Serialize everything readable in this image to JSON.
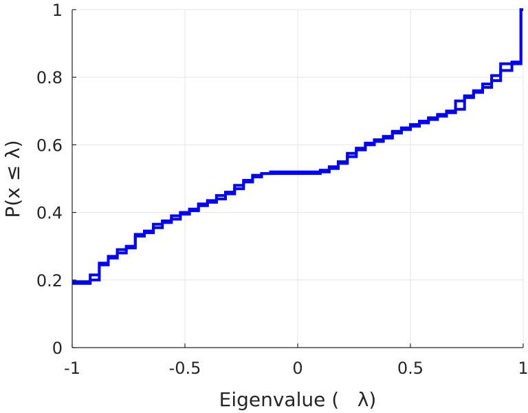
{
  "chart_data": {
    "type": "line",
    "style": "stairs",
    "title": "",
    "xlabel": "Eigenvalue (   λ)",
    "ylabel": "P(x ≤ λ)",
    "xlim": [
      -1,
      1
    ],
    "ylim": [
      0,
      1
    ],
    "grid": true,
    "legend": "none",
    "xticks": [
      -1,
      -0.5,
      0,
      0.5,
      1
    ],
    "xtick_labels": [
      "-1",
      "-0.5",
      "0",
      "0.5",
      "1"
    ],
    "yticks": [
      0,
      0.2,
      0.4,
      0.6,
      0.8,
      1
    ],
    "ytick_labels": [
      "0",
      "0.2",
      "0.4",
      "0.6",
      "0.8",
      "1"
    ],
    "colors": {
      "series": "#0000ff",
      "grid": "#e6e6e6",
      "axis": "#262626"
    },
    "series": [
      {
        "x": [
          -1,
          -0.92,
          -0.88,
          -0.84,
          -0.8,
          -0.76,
          -0.72,
          -0.68,
          -0.64,
          -0.6,
          -0.56,
          -0.52,
          -0.48,
          -0.44,
          -0.4,
          -0.36,
          -0.32,
          -0.28,
          -0.24,
          -0.2,
          -0.16,
          -0.12,
          0.1,
          0.14,
          0.18,
          0.22,
          0.26,
          0.3,
          0.34,
          0.38,
          0.42,
          0.46,
          0.5,
          0.54,
          0.58,
          0.62,
          0.66,
          0.7,
          0.74,
          0.78,
          0.82,
          0.86,
          0.9,
          0.95,
          0.99,
          1
        ],
        "y": [
          0.19,
          0.2,
          0.245,
          0.265,
          0.28,
          0.295,
          0.33,
          0.345,
          0.355,
          0.37,
          0.38,
          0.395,
          0.405,
          0.42,
          0.43,
          0.44,
          0.455,
          0.47,
          0.49,
          0.505,
          0.515,
          0.52,
          0.525,
          0.535,
          0.55,
          0.565,
          0.585,
          0.6,
          0.61,
          0.62,
          0.635,
          0.645,
          0.655,
          0.665,
          0.675,
          0.685,
          0.695,
          0.705,
          0.74,
          0.755,
          0.77,
          0.79,
          0.82,
          0.84,
          1,
          1
        ]
      },
      {
        "x": [
          -1,
          -0.92,
          -0.88,
          -0.84,
          -0.8,
          -0.76,
          -0.72,
          -0.68,
          -0.64,
          -0.6,
          -0.56,
          -0.52,
          -0.48,
          -0.44,
          -0.4,
          -0.36,
          -0.32,
          -0.28,
          -0.24,
          -0.2,
          -0.16,
          -0.12,
          0.1,
          0.14,
          0.18,
          0.22,
          0.26,
          0.3,
          0.34,
          0.38,
          0.42,
          0.46,
          0.5,
          0.54,
          0.58,
          0.62,
          0.66,
          0.7,
          0.74,
          0.78,
          0.82,
          0.86,
          0.9,
          0.95,
          0.99,
          1
        ],
        "y": [
          0.195,
          0.215,
          0.25,
          0.27,
          0.29,
          0.3,
          0.335,
          0.34,
          0.365,
          0.375,
          0.39,
          0.4,
          0.41,
          0.425,
          0.435,
          0.45,
          0.46,
          0.48,
          0.495,
          0.51,
          0.515,
          0.515,
          0.52,
          0.53,
          0.545,
          0.575,
          0.59,
          0.605,
          0.615,
          0.625,
          0.64,
          0.65,
          0.66,
          0.67,
          0.68,
          0.69,
          0.7,
          0.73,
          0.745,
          0.76,
          0.78,
          0.805,
          0.84,
          0.845,
          1,
          1
        ]
      }
    ]
  }
}
